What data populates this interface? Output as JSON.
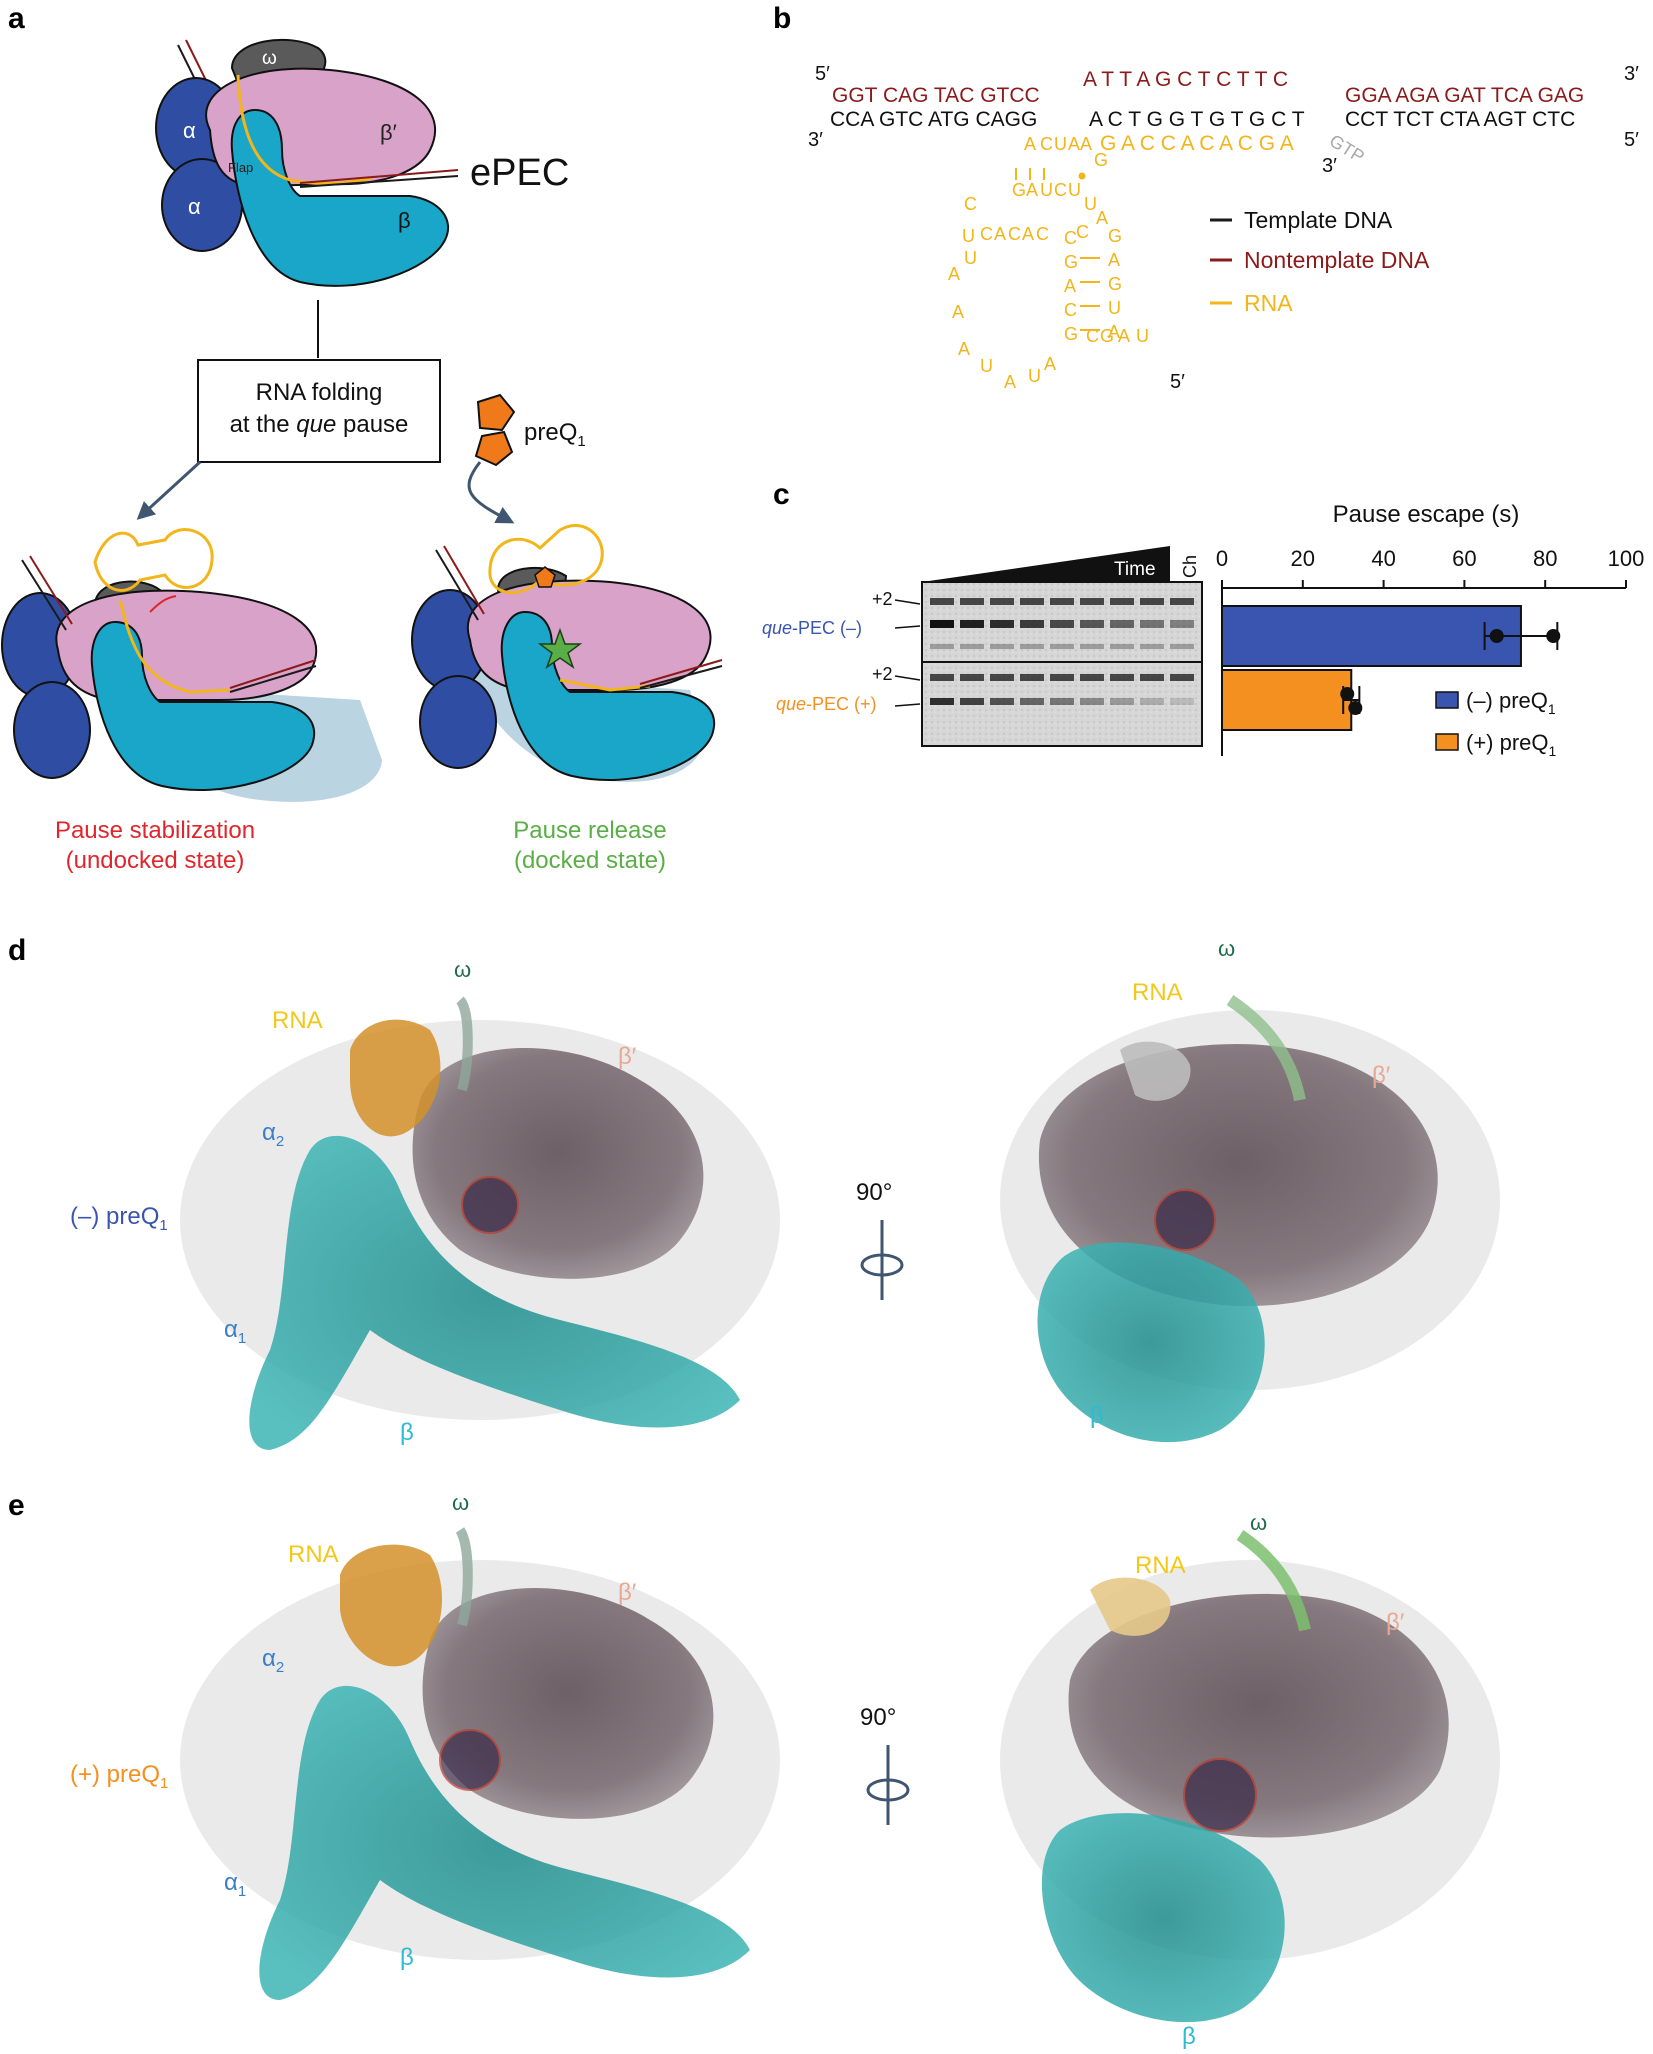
{
  "colors": {
    "template": "#1a1a1a",
    "nontemplate": "#8b1a1a",
    "rna": "#f2b51a",
    "gtp": "#a9a9a9",
    "minus": "#3a55b0",
    "plus": "#f39020",
    "beta": "#1aa6c8",
    "betaprime": "#d9a2c8",
    "alpha": "#2f4ea3",
    "omega": "#5a5a5a",
    "red": "#e0262d",
    "green": "#5aae46",
    "teal": "#2aa0a0",
    "omegaLabel": "#1d6b4c",
    "betaPrimeLabel": "#e8a896",
    "alphaLabel": "#3a7ec8"
  },
  "panel_a": {
    "letter": "a",
    "omega": "ω",
    "alpha": "α",
    "alpha2": "α",
    "beta_prime": "β′",
    "beta": "β",
    "flap": "Flap",
    "epec": "ePEC",
    "box_line1": "RNA folding",
    "box_line2_pre": "at the ",
    "box_line2_italic": "que",
    "box_line2_post": " pause",
    "preq": "preQ",
    "preq_sub": "1",
    "left_caption_1": "Pause stabilization",
    "left_caption_2": "(undocked state)",
    "right_caption_1": "Pause release",
    "right_caption_2": "(docked state)"
  },
  "panel_b": {
    "letter": "b",
    "nt_5": "5′",
    "nt_3": "3′",
    "nt_left": "GGT CAG TAC GTCC",
    "nt_mid": "A T T A G C T C T T C",
    "nt_right": "GGA AGA GAT TCA GAG",
    "t_3": "3′",
    "t_5": "5′",
    "t_left": "CCA GTC ATG CAGG",
    "t_mid": "A C T G G T G T G C T",
    "t_right": "CCT  TCT  CTA AGT CTC",
    "rna_line": "G A C C A C A C G A",
    "rna_3": "3′",
    "gtp": "GTP",
    "rna_5": "5′",
    "hairpin": [
      "G",
      "A",
      "C",
      "U",
      "A",
      "A",
      "C",
      "G",
      "A",
      "U",
      "C",
      "U",
      "U",
      "A",
      "U",
      "C",
      "A",
      "C",
      "A",
      "C",
      "C",
      "G",
      "A",
      "C",
      "G",
      "A",
      "U",
      "A",
      "C",
      "G",
      "A",
      "G",
      "U",
      "A",
      "A",
      "U",
      "A",
      "U",
      "A",
      "C",
      "G",
      "A",
      "U"
    ],
    "legend_template": "Template DNA",
    "legend_nontemplate": "Nontemplate DNA",
    "legend_rna": "RNA"
  },
  "panel_c": {
    "letter": "c",
    "gel_time": "Time",
    "gel_ch": "Ch",
    "gel_plus2_a": "+2",
    "gel_plus2_b": "+2",
    "gel_label_minus_pre": "que",
    "gel_label_minus_post": "-PEC (–)",
    "gel_label_plus_pre": "que",
    "gel_label_plus_post": "-PEC (+)",
    "chart_title": "Pause escape (s)",
    "legend_minus": "(–) preQ",
    "legend_plus": "(+) preQ",
    "legend_sub": "1"
  },
  "chart_data": {
    "type": "bar",
    "orientation": "horizontal",
    "title": "Pause escape (s)",
    "xlim": [
      0,
      100
    ],
    "xticks": [
      0,
      20,
      40,
      60,
      80,
      100
    ],
    "xtick_labels": [
      "0",
      "20",
      "40",
      "60",
      "80",
      "100"
    ],
    "categories": [
      "(–) preQ1",
      "(+) preQ1"
    ],
    "values": [
      74,
      32
    ],
    "error": [
      9,
      2
    ],
    "points": [
      [
        68,
        82
      ],
      [
        31,
        33
      ]
    ],
    "legend_position": "bottom-right"
  },
  "panel_d": {
    "letter": "d",
    "omega": "ω",
    "rna": "RNA",
    "beta_prime": "β′",
    "alpha2": "α",
    "alpha2_sub": "2",
    "alpha1": "α",
    "alpha1_sub": "1",
    "beta": "β",
    "state_pre": "(–) preQ",
    "state_sub": "1",
    "rotation": "90°",
    "r_omega": "ω",
    "r_rna": "RNA",
    "r_beta_prime": "β′",
    "r_beta": "β"
  },
  "panel_e": {
    "letter": "e",
    "omega": "ω",
    "rna": "RNA",
    "beta_prime": "β′",
    "alpha2": "α",
    "alpha2_sub": "2",
    "alpha1": "α",
    "alpha1_sub": "1",
    "beta": "β",
    "state_pre": "(+) preQ",
    "state_sub": "1",
    "rotation": "90°",
    "r_omega": "ω",
    "r_rna": "RNA",
    "r_beta_prime": "β′",
    "r_beta": "β"
  }
}
